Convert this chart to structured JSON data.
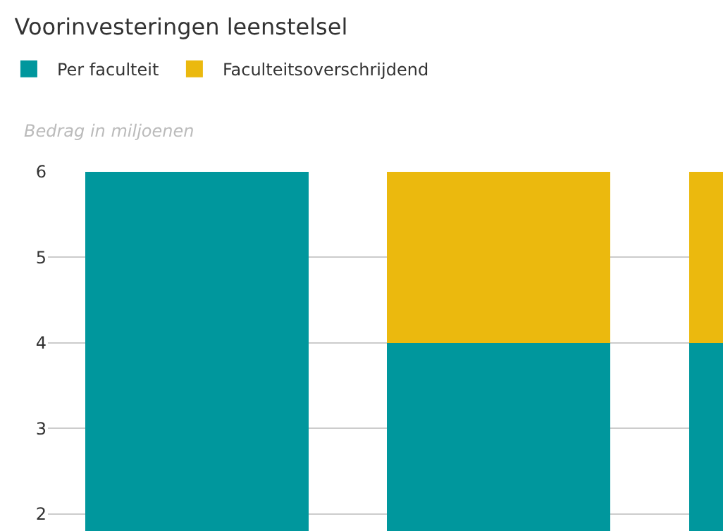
{
  "chart_data": {
    "type": "bar",
    "title": "Voorinvesteringen leenstelsel",
    "ylabel": "Bedrag in miljoenen",
    "categories": [
      null,
      null,
      null
    ],
    "stacked": true,
    "series": [
      {
        "name": "Per faculteit",
        "color": "#00979d",
        "values": [
          6,
          4,
          4
        ]
      },
      {
        "name": "Faculteitsoverschrijdend",
        "color": "#ebb90e",
        "values": [
          null,
          2,
          2
        ]
      }
    ],
    "ylim": [
      1.8,
      6
    ],
    "yticks": [
      2,
      3,
      4,
      5,
      6
    ],
    "grid": "y",
    "legend": "top left"
  }
}
